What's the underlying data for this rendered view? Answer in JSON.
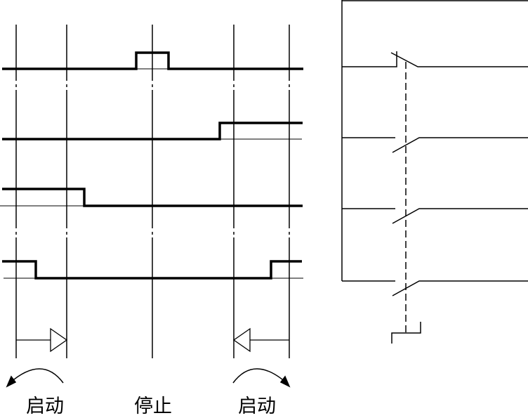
{
  "labels": {
    "start_left": "启动",
    "stop": "停止",
    "start_right": "启动"
  },
  "colors": {
    "line": "#000000",
    "background": "#ffffff"
  }
}
